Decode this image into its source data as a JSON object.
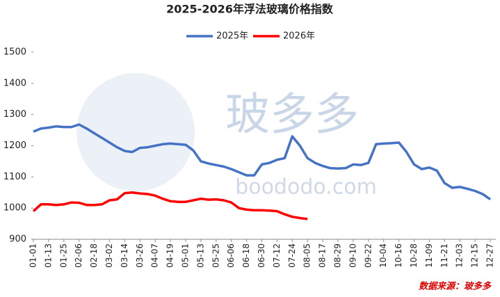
{
  "chart_data": {
    "type": "line",
    "title": "2025-2026年浮法玻璃价格指数",
    "categories": [
      "01-01",
      null,
      "01-13",
      null,
      "01-25",
      null,
      "02-06",
      null,
      "02-18",
      null,
      "03-02",
      null,
      "03-14",
      null,
      "03-26",
      null,
      "04-07",
      null,
      "04-19",
      null,
      "05-01",
      null,
      "05-13",
      null,
      "05-25",
      null,
      "06-06",
      null,
      "06-18",
      null,
      "06-30",
      null,
      "07-12",
      null,
      "07-24",
      null,
      "08-05",
      null,
      "08-17",
      null,
      "08-29",
      null,
      "09-10",
      null,
      "09-22",
      null,
      "10-04",
      null,
      "10-16",
      null,
      "10-28",
      null,
      "11-09",
      null,
      "11-21",
      null,
      "12-03",
      null,
      "12-15",
      null,
      "12-27"
    ],
    "series": [
      {
        "name": "2025年",
        "color": "#4472c4",
        "values": [
          1245,
          1255,
          1258,
          1262,
          1260,
          1260,
          1268,
          1255,
          1240,
          1225,
          1210,
          1195,
          1183,
          1180,
          1193,
          1195,
          1200,
          1205,
          1207,
          1205,
          1203,
          1185,
          1150,
          1143,
          1138,
          1133,
          1125,
          1115,
          1105,
          1105,
          1140,
          1145,
          1155,
          1160,
          1230,
          1200,
          1160,
          1145,
          1135,
          1128,
          1127,
          1128,
          1140,
          1138,
          1145,
          1205,
          1207,
          1208,
          1210,
          1180,
          1140,
          1125,
          1130,
          1120,
          1080,
          1065,
          1068,
          1062,
          1055,
          1045,
          1028
        ]
      },
      {
        "name": "2026年",
        "color": "#ff0000",
        "values": [
          990,
          1012,
          1012,
          1010,
          1012,
          1018,
          1017,
          1010,
          1010,
          1012,
          1025,
          1028,
          1048,
          1050,
          1047,
          1045,
          1040,
          1030,
          1022,
          1020,
          1020,
          1025,
          1030,
          1027,
          1028,
          1025,
          1018,
          1000,
          995,
          993,
          993,
          992,
          990,
          980,
          972,
          968,
          965,
          null,
          null,
          null,
          null,
          null,
          null,
          null,
          null,
          null,
          null,
          null,
          null,
          null,
          null,
          null,
          null,
          null,
          null,
          null,
          null,
          null,
          null,
          null,
          null
        ]
      }
    ],
    "ylim": [
      900,
      1500
    ],
    "yticks": [
      900,
      1000,
      1100,
      1200,
      1300,
      1400,
      1500
    ],
    "grid": false,
    "legend": "top",
    "source": "数据来源：玻多多",
    "watermark": {
      "logo": "玻多多",
      "url": "boododo.com"
    }
  }
}
